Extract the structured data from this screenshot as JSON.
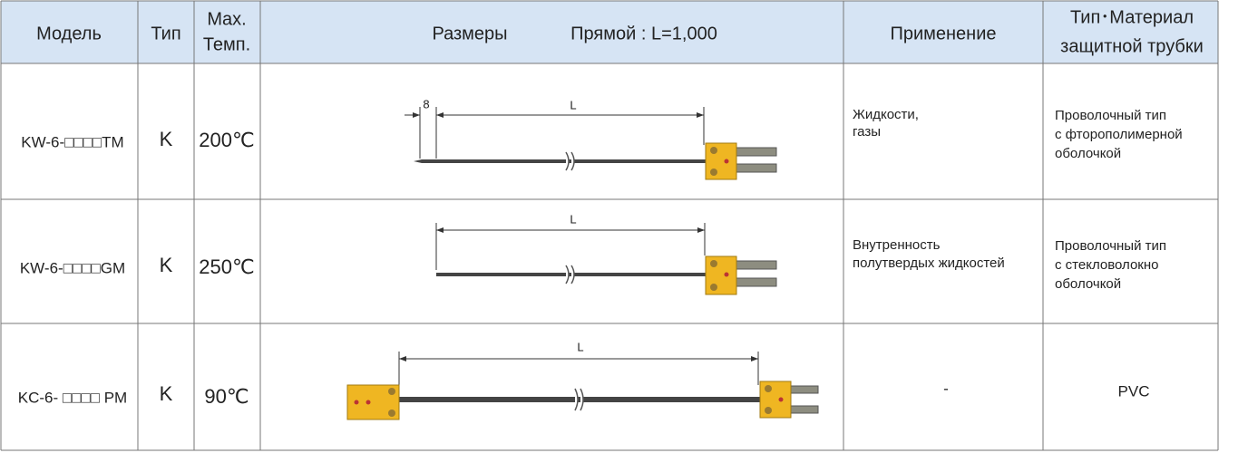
{
  "header": {
    "model": "Модель",
    "type": "Тип",
    "max_temp": [
      "Max.",
      "Темп."
    ],
    "dimensions": "Размеры",
    "length_note": "Прямой : L=1,000",
    "application": "Применение",
    "material": [
      "Тип･Материал",
      "защитной трубки"
    ]
  },
  "rows": [
    {
      "model": "KW-6-□□□□TM",
      "type": "K",
      "max_temp": "200℃",
      "dim_labels": [
        "8",
        "L"
      ],
      "application": [
        "Жидкости,",
        "газы"
      ],
      "material": [
        "Проволочный тип",
        "с фторополимерной",
        "оболочкой"
      ]
    },
    {
      "model": "KW-6-□□□□GM",
      "type": "K",
      "max_temp": "250℃",
      "dim_labels": [
        "L"
      ],
      "application": [
        "Внутренность",
        "полутвердых жидкостей"
      ],
      "material": [
        "Проволочный тип",
        "с стекловолокно",
        "оболочкой"
      ]
    },
    {
      "model": "KC-6- □□□□ PM",
      "type": "K",
      "max_temp": "90℃",
      "dim_labels": [
        "L"
      ],
      "application": [
        "-"
      ],
      "material": [
        "PVC"
      ]
    }
  ]
}
